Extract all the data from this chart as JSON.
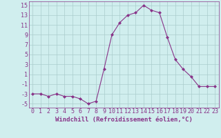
{
  "x": [
    0,
    1,
    2,
    3,
    4,
    5,
    6,
    7,
    8,
    9,
    10,
    11,
    12,
    13,
    14,
    15,
    16,
    17,
    18,
    19,
    20,
    21,
    22,
    23
  ],
  "y": [
    -3,
    -3,
    -3.5,
    -3,
    -3.5,
    -3.5,
    -4,
    -5,
    -4.5,
    2,
    9,
    11.5,
    13,
    13.5,
    15,
    14,
    13.5,
    8.5,
    4,
    2,
    0.5,
    -1.5,
    -1.5,
    -1.5
  ],
  "line_color": "#883388",
  "marker": "D",
  "marker_size": 2.0,
  "bg_color": "#d0eeee",
  "grid_color": "#aacccc",
  "xlabel": "Windchill (Refroidissement éolien,°C)",
  "yticks": [
    -5,
    -3,
    -1,
    1,
    3,
    5,
    7,
    9,
    11,
    13,
    15
  ],
  "xticks": [
    0,
    1,
    2,
    3,
    4,
    5,
    6,
    7,
    8,
    9,
    10,
    11,
    12,
    13,
    14,
    15,
    16,
    17,
    18,
    19,
    20,
    21,
    22,
    23
  ],
  "ylim": [
    -5.8,
    15.8
  ],
  "xlim": [
    -0.5,
    23.5
  ],
  "xlabel_fontsize": 6.5,
  "tick_fontsize": 6.0
}
